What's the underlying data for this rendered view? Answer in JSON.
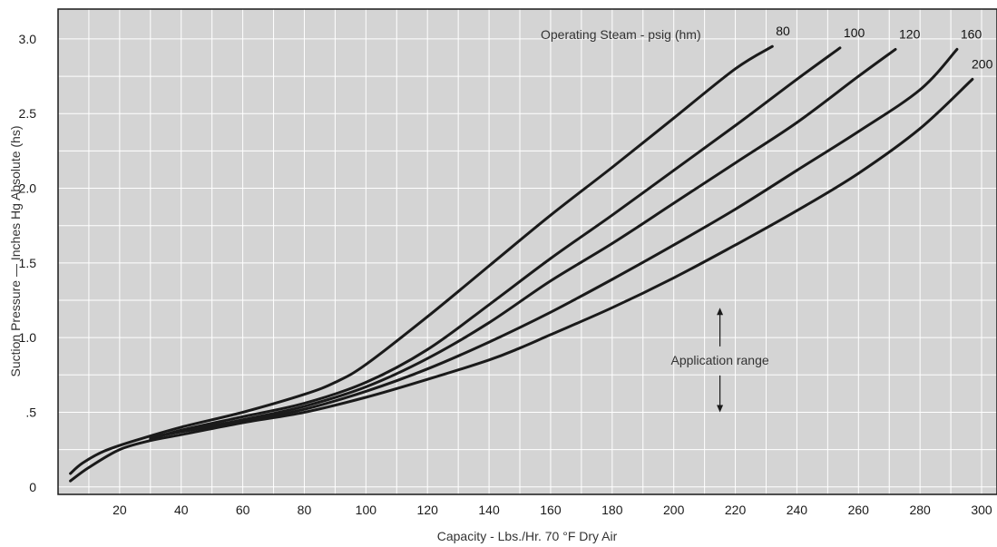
{
  "chart_data": {
    "type": "line",
    "title": "",
    "xlabel": "Capacity - Lbs./Hr. 70 °F Dry Air",
    "ylabel": "Suction Pressure — Inches Hg  Absolute (hs)",
    "xlim": [
      0,
      305
    ],
    "ylim": [
      -0.05,
      3.2
    ],
    "x_ticks": [
      20,
      40,
      60,
      80,
      100,
      120,
      140,
      160,
      180,
      200,
      220,
      240,
      260,
      280,
      300
    ],
    "x_tick_labels": [
      "20",
      "40",
      "60",
      "80",
      "100",
      "120",
      "140",
      "160",
      "180",
      "200",
      "220",
      "240",
      "260",
      "280",
      "300"
    ],
    "y_ticks": [
      0,
      0.5,
      1.0,
      1.5,
      2.0,
      2.5,
      3.0
    ],
    "y_tick_labels": [
      "0",
      ".5",
      "1.0",
      "1.5",
      "2.0",
      "2.5",
      "3.0"
    ],
    "minor_x_step": 10,
    "minor_y_step": 0.25,
    "grid": true,
    "background": "#d4d4d4",
    "grid_color": "#ffffff",
    "line_color": "#1a1a1a",
    "legend_title": "Operating Steam - psig (hm)",
    "series": [
      {
        "name": "80",
        "x": [
          4,
          8,
          15,
          25,
          40,
          60,
          80,
          90,
          100,
          120,
          140,
          160,
          180,
          200,
          220,
          232
        ],
        "y": [
          0.09,
          0.16,
          0.24,
          0.31,
          0.4,
          0.5,
          0.62,
          0.7,
          0.82,
          1.14,
          1.48,
          1.82,
          2.14,
          2.47,
          2.8,
          2.95
        ]
      },
      {
        "name": "100",
        "x": [
          30,
          40,
          60,
          80,
          100,
          120,
          140,
          160,
          180,
          200,
          220,
          240,
          254
        ],
        "y": [
          0.32,
          0.38,
          0.47,
          0.56,
          0.7,
          0.92,
          1.22,
          1.53,
          1.82,
          2.12,
          2.42,
          2.73,
          2.94
        ]
      },
      {
        "name": "120",
        "x": [
          30,
          40,
          60,
          80,
          100,
          120,
          140,
          160,
          180,
          200,
          220,
          240,
          260,
          272
        ],
        "y": [
          0.33,
          0.37,
          0.45,
          0.54,
          0.67,
          0.86,
          1.1,
          1.38,
          1.63,
          1.9,
          2.17,
          2.44,
          2.75,
          2.93
        ]
      },
      {
        "name": "160",
        "x": [
          32,
          40,
          60,
          80,
          100,
          120,
          140,
          160,
          180,
          200,
          220,
          240,
          260,
          280,
          292
        ],
        "y": [
          0.34,
          0.37,
          0.44,
          0.52,
          0.64,
          0.79,
          0.97,
          1.17,
          1.39,
          1.62,
          1.86,
          2.12,
          2.38,
          2.66,
          2.93
        ]
      },
      {
        "name": "200",
        "x": [
          4,
          10,
          20,
          30,
          40,
          60,
          80,
          100,
          120,
          140,
          150,
          160,
          180,
          200,
          220,
          240,
          260,
          280,
          297
        ],
        "y": [
          0.04,
          0.13,
          0.25,
          0.31,
          0.35,
          0.43,
          0.5,
          0.6,
          0.72,
          0.85,
          0.93,
          1.02,
          1.2,
          1.4,
          1.62,
          1.85,
          2.1,
          2.4,
          2.73
        ]
      }
    ],
    "annotations": [
      {
        "text": "Application range",
        "x": 215,
        "y": 0.85,
        "arrow_up_to": 1.2,
        "arrow_down_to": 0.5
      }
    ]
  }
}
